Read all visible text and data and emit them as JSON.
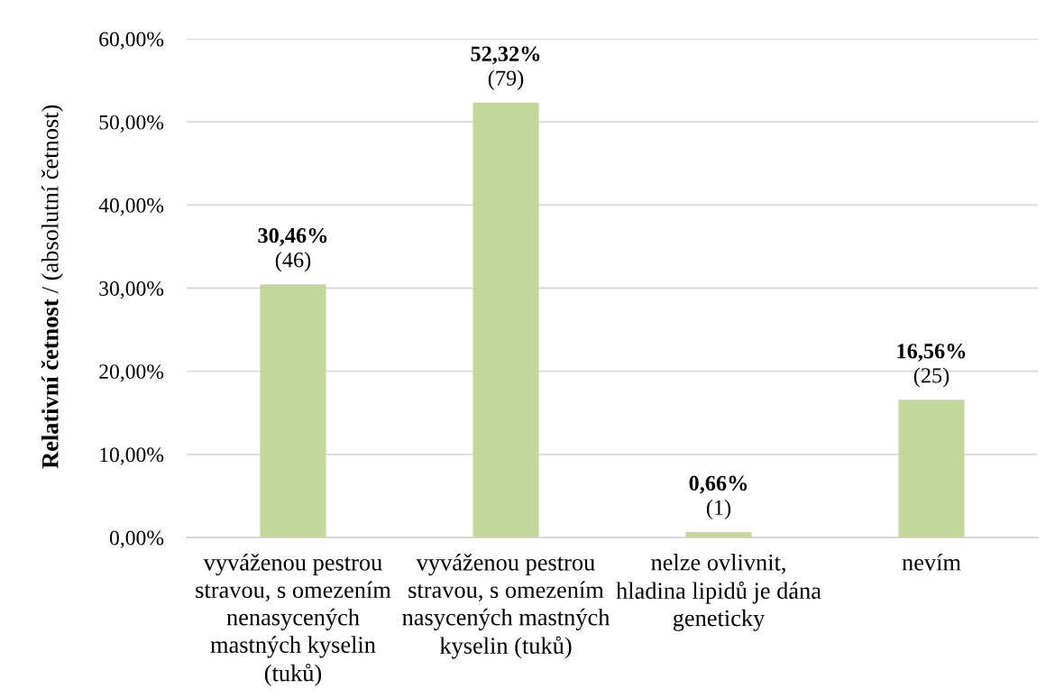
{
  "chart_data": {
    "type": "bar",
    "ylabel": "Relativní četnost / (absolutní četnost)",
    "categories": [
      "vyváženou pestrou\nstravou, s omezením\nnenasycených\nmastných kyselin\n(tuků)",
      "vyváženou pestrou\nstravou, s omezením\nnasycených mastných\nkyselin (tuků)",
      "nelze ovlivnit,\nhladina lipidů je dána\ngeneticky",
      "nevím"
    ],
    "values": [
      30.46,
      52.32,
      0.66,
      16.56
    ],
    "color": "#c4d79b",
    "value_labels": [
      "30,46%\n(46)",
      "52,32%\n(79)",
      "0,66%\n(1)",
      "16,56%\n(25)"
    ],
    "ylim": [
      0,
      60
    ],
    "yticks": [
      {
        "value": 0,
        "label": "0,00%"
      },
      {
        "value": 10,
        "label": "10,00%"
      },
      {
        "value": 20,
        "label": "20,00%"
      },
      {
        "value": 30,
        "label": "30,00%"
      },
      {
        "value": 40,
        "label": "40,00%"
      },
      {
        "value": 50,
        "label": "50,00%"
      },
      {
        "value": 60,
        "label": "60,00%"
      }
    ],
    "grid": "y",
    "legend": false
  }
}
